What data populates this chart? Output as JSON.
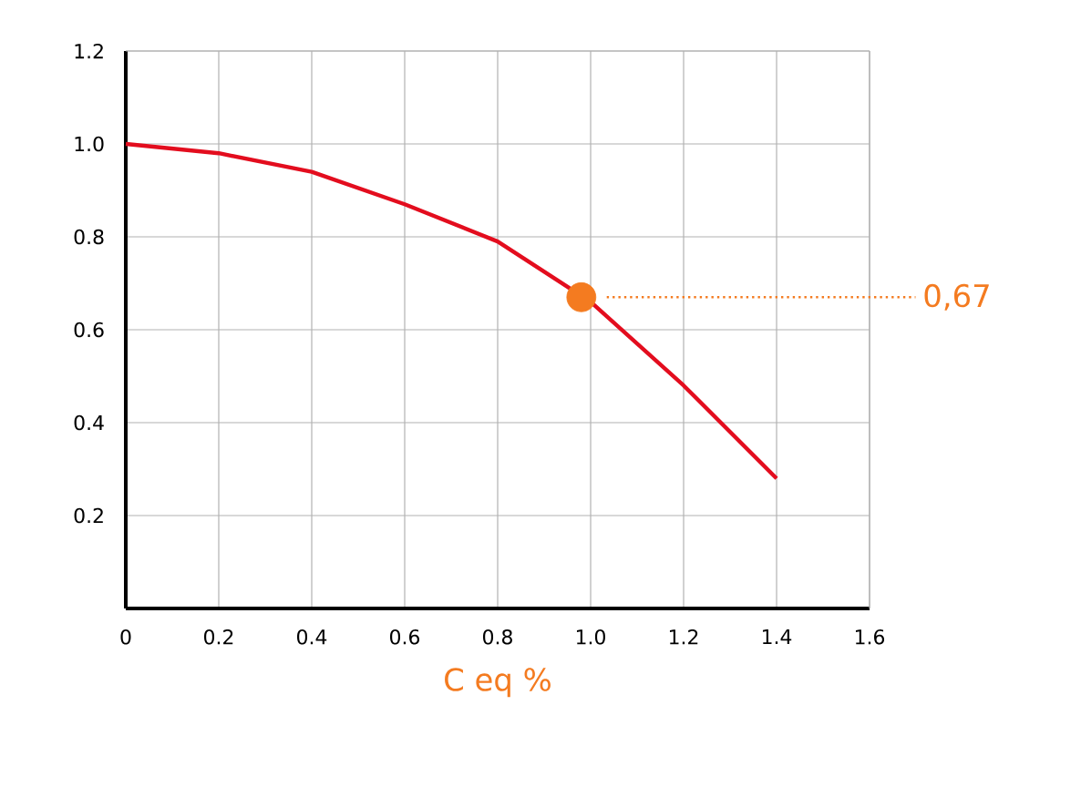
{
  "chart_data": {
    "type": "line",
    "xlabel": "C eq %",
    "xlim": [
      0,
      1.6
    ],
    "ylim": [
      0,
      1.2
    ],
    "xticks": [
      0,
      0.2,
      0.4,
      0.6,
      0.8,
      {
        "value": 1.0,
        "label": "1.0"
      },
      1.2,
      1.4,
      1.6
    ],
    "yticks": [
      {
        "value": 0.2,
        "label": "0.2"
      },
      {
        "value": 0.4,
        "label": "0.4"
      },
      {
        "value": 0.6,
        "label": "0.6"
      },
      {
        "value": 0.8,
        "label": "0.8"
      },
      {
        "value": 1.0,
        "label": "1.0"
      },
      {
        "value": 1.2,
        "label": "1.2"
      }
    ],
    "grid": true,
    "line_style": "solid",
    "series": [
      {
        "marker": "none",
        "color": "#e30d1e",
        "x": [
          0,
          0.2,
          0.4,
          0.6,
          0.8,
          1.0,
          1.2,
          1.4
        ],
        "values": [
          1.0,
          0.98,
          0.94,
          0.87,
          0.79,
          0.66,
          0.48,
          0.28
        ]
      },
      {
        "type": "scatter",
        "marker": "circle",
        "color": "#f47b20",
        "x": [
          0.98
        ],
        "values": [
          0.67
        ]
      }
    ],
    "annotations": [
      "0,67"
    ]
  }
}
